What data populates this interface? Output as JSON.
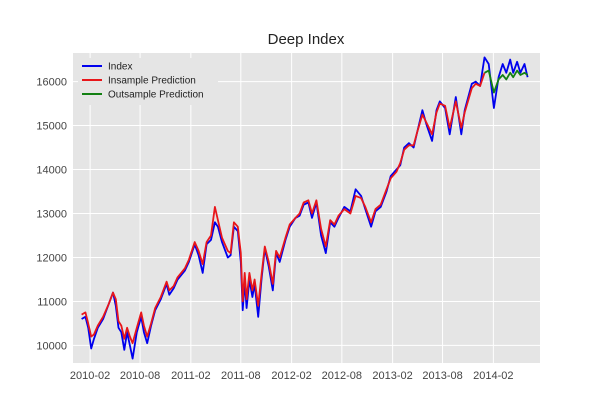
{
  "chart_data": {
    "type": "line",
    "title": "Deep Index",
    "xlabel": "",
    "ylabel": "",
    "grid": true,
    "legend_position": "top-left",
    "x_tick_labels": [
      "2010-02",
      "2010-08",
      "2011-02",
      "2011-08",
      "2012-02",
      "2012-08",
      "2013-02",
      "2013-08",
      "2014-02"
    ],
    "y_ticks": [
      10000,
      11000,
      12000,
      13000,
      14000,
      15000,
      16000
    ],
    "xlim": [
      "2009-12-01",
      "2014-07-20"
    ],
    "ylim": [
      9600,
      16650
    ],
    "colors": {
      "background": "#e5e5e5",
      "grid": "#ffffff",
      "index": "#0000ee",
      "insample": "#e8161a",
      "outsample": "#128012"
    },
    "series": [
      {
        "name": "Index",
        "color": "#0000ee",
        "points": [
          [
            "2010-01-01",
            10600
          ],
          [
            "2010-01-15",
            10650
          ],
          [
            "2010-01-25",
            10400
          ],
          [
            "2010-02-05",
            9930
          ],
          [
            "2010-02-15",
            10150
          ],
          [
            "2010-03-01",
            10400
          ],
          [
            "2010-03-20",
            10600
          ],
          [
            "2010-04-10",
            10950
          ],
          [
            "2010-04-25",
            11200
          ],
          [
            "2010-05-05",
            10900
          ],
          [
            "2010-05-15",
            10400
          ],
          [
            "2010-05-25",
            10300
          ],
          [
            "2010-06-05",
            9900
          ],
          [
            "2010-06-15",
            10300
          ],
          [
            "2010-06-25",
            10000
          ],
          [
            "2010-07-05",
            9700
          ],
          [
            "2010-07-20",
            10300
          ],
          [
            "2010-08-05",
            10650
          ],
          [
            "2010-08-15",
            10300
          ],
          [
            "2010-08-27",
            10050
          ],
          [
            "2010-09-10",
            10450
          ],
          [
            "2010-09-25",
            10800
          ],
          [
            "2010-10-15",
            11050
          ],
          [
            "2010-11-05",
            11400
          ],
          [
            "2010-11-15",
            11150
          ],
          [
            "2010-12-01",
            11300
          ],
          [
            "2010-12-15",
            11500
          ],
          [
            "2011-01-10",
            11700
          ],
          [
            "2011-01-25",
            11900
          ],
          [
            "2011-02-15",
            12300
          ],
          [
            "2011-03-01",
            12050
          ],
          [
            "2011-03-16",
            11650
          ],
          [
            "2011-03-30",
            12300
          ],
          [
            "2011-04-15",
            12400
          ],
          [
            "2011-04-29",
            12800
          ],
          [
            "2011-05-10",
            12700
          ],
          [
            "2011-05-25",
            12350
          ],
          [
            "2011-06-15",
            12000
          ],
          [
            "2011-06-25",
            12050
          ],
          [
            "2011-07-07",
            12700
          ],
          [
            "2011-07-21",
            12600
          ],
          [
            "2011-08-01",
            11900
          ],
          [
            "2011-08-08",
            10800
          ],
          [
            "2011-08-15",
            11450
          ],
          [
            "2011-08-22",
            10850
          ],
          [
            "2011-09-01",
            11500
          ],
          [
            "2011-09-12",
            11100
          ],
          [
            "2011-09-20",
            11400
          ],
          [
            "2011-10-03",
            10650
          ],
          [
            "2011-10-15",
            11500
          ],
          [
            "2011-10-27",
            12200
          ],
          [
            "2011-11-10",
            11800
          ],
          [
            "2011-11-25",
            11250
          ],
          [
            "2011-12-07",
            12100
          ],
          [
            "2011-12-20",
            11900
          ],
          [
            "2012-01-10",
            12400
          ],
          [
            "2012-01-25",
            12700
          ],
          [
            "2012-02-15",
            12900
          ],
          [
            "2012-03-01",
            12950
          ],
          [
            "2012-03-16",
            13200
          ],
          [
            "2012-04-02",
            13250
          ],
          [
            "2012-04-15",
            12900
          ],
          [
            "2012-05-01",
            13250
          ],
          [
            "2012-05-18",
            12500
          ],
          [
            "2012-06-04",
            12100
          ],
          [
            "2012-06-20",
            12800
          ],
          [
            "2012-07-05",
            12700
          ],
          [
            "2012-07-20",
            12900
          ],
          [
            "2012-08-10",
            13150
          ],
          [
            "2012-09-01",
            13050
          ],
          [
            "2012-09-20",
            13550
          ],
          [
            "2012-10-10",
            13400
          ],
          [
            "2012-10-25",
            13100
          ],
          [
            "2012-11-15",
            12700
          ],
          [
            "2012-12-01",
            13050
          ],
          [
            "2012-12-20",
            13150
          ],
          [
            "2013-01-10",
            13500
          ],
          [
            "2013-01-25",
            13850
          ],
          [
            "2013-02-15",
            14000
          ],
          [
            "2013-03-01",
            14100
          ],
          [
            "2013-03-15",
            14500
          ],
          [
            "2013-04-01",
            14600
          ],
          [
            "2013-04-18",
            14500
          ],
          [
            "2013-05-01",
            14850
          ],
          [
            "2013-05-20",
            15350
          ],
          [
            "2013-06-05",
            15000
          ],
          [
            "2013-06-24",
            14650
          ],
          [
            "2013-07-10",
            15350
          ],
          [
            "2013-07-22",
            15550
          ],
          [
            "2013-08-10",
            15400
          ],
          [
            "2013-08-27",
            14800
          ],
          [
            "2013-09-18",
            15650
          ],
          [
            "2013-10-08",
            14800
          ],
          [
            "2013-10-20",
            15350
          ],
          [
            "2013-11-15",
            15950
          ],
          [
            "2013-11-29",
            16000
          ],
          [
            "2013-12-15",
            15900
          ],
          [
            "2013-12-31",
            16550
          ],
          [
            "2014-01-15",
            16400
          ],
          [
            "2014-02-03",
            15400
          ],
          [
            "2014-02-20",
            16100
          ],
          [
            "2014-03-07",
            16400
          ],
          [
            "2014-03-20",
            16200
          ],
          [
            "2014-04-03",
            16500
          ],
          [
            "2014-04-14",
            16200
          ],
          [
            "2014-04-28",
            16450
          ],
          [
            "2014-05-10",
            16200
          ],
          [
            "2014-05-25",
            16400
          ],
          [
            "2014-06-05",
            16100
          ]
        ]
      },
      {
        "name": "Insample Prediction",
        "color": "#e8161a",
        "points": [
          [
            "2010-01-01",
            10700
          ],
          [
            "2010-01-15",
            10750
          ],
          [
            "2010-01-25",
            10500
          ],
          [
            "2010-02-05",
            10200
          ],
          [
            "2010-02-15",
            10250
          ],
          [
            "2010-03-01",
            10450
          ],
          [
            "2010-03-20",
            10650
          ],
          [
            "2010-04-10",
            10950
          ],
          [
            "2010-04-25",
            11200
          ],
          [
            "2010-05-05",
            11050
          ],
          [
            "2010-05-15",
            10550
          ],
          [
            "2010-05-25",
            10450
          ],
          [
            "2010-06-05",
            10150
          ],
          [
            "2010-06-15",
            10400
          ],
          [
            "2010-06-25",
            10200
          ],
          [
            "2010-07-05",
            10050
          ],
          [
            "2010-07-20",
            10400
          ],
          [
            "2010-08-05",
            10750
          ],
          [
            "2010-08-15",
            10450
          ],
          [
            "2010-08-27",
            10200
          ],
          [
            "2010-09-10",
            10500
          ],
          [
            "2010-09-25",
            10850
          ],
          [
            "2010-10-15",
            11100
          ],
          [
            "2010-11-05",
            11450
          ],
          [
            "2010-11-15",
            11250
          ],
          [
            "2010-12-01",
            11350
          ],
          [
            "2010-12-15",
            11550
          ],
          [
            "2011-01-10",
            11750
          ],
          [
            "2011-01-25",
            11950
          ],
          [
            "2011-02-15",
            12350
          ],
          [
            "2011-03-01",
            12150
          ],
          [
            "2011-03-16",
            11850
          ],
          [
            "2011-03-30",
            12350
          ],
          [
            "2011-04-15",
            12500
          ],
          [
            "2011-04-29",
            13150
          ],
          [
            "2011-05-10",
            12850
          ],
          [
            "2011-05-25",
            12450
          ],
          [
            "2011-06-15",
            12150
          ],
          [
            "2011-06-25",
            12100
          ],
          [
            "2011-07-07",
            12800
          ],
          [
            "2011-07-21",
            12700
          ],
          [
            "2011-08-01",
            12100
          ],
          [
            "2011-08-08",
            11000
          ],
          [
            "2011-08-15",
            11650
          ],
          [
            "2011-08-22",
            11050
          ],
          [
            "2011-09-01",
            11650
          ],
          [
            "2011-09-12",
            11250
          ],
          [
            "2011-09-20",
            11500
          ],
          [
            "2011-10-03",
            10900
          ],
          [
            "2011-10-15",
            11600
          ],
          [
            "2011-10-27",
            12250
          ],
          [
            "2011-11-10",
            11900
          ],
          [
            "2011-11-25",
            11400
          ],
          [
            "2011-12-07",
            12150
          ],
          [
            "2011-12-20",
            12000
          ],
          [
            "2012-01-10",
            12450
          ],
          [
            "2012-01-25",
            12750
          ],
          [
            "2012-02-15",
            12900
          ],
          [
            "2012-03-01",
            13000
          ],
          [
            "2012-03-16",
            13250
          ],
          [
            "2012-04-02",
            13300
          ],
          [
            "2012-04-15",
            13000
          ],
          [
            "2012-05-01",
            13300
          ],
          [
            "2012-05-18",
            12650
          ],
          [
            "2012-06-04",
            12250
          ],
          [
            "2012-06-20",
            12850
          ],
          [
            "2012-07-05",
            12750
          ],
          [
            "2012-07-20",
            12950
          ],
          [
            "2012-08-10",
            13100
          ],
          [
            "2012-09-01",
            13000
          ],
          [
            "2012-09-20",
            13400
          ],
          [
            "2012-10-10",
            13350
          ],
          [
            "2012-10-25",
            13150
          ],
          [
            "2012-11-15",
            12800
          ],
          [
            "2012-12-01",
            13100
          ],
          [
            "2012-12-20",
            13200
          ],
          [
            "2013-01-10",
            13550
          ],
          [
            "2013-01-25",
            13800
          ],
          [
            "2013-02-15",
            13950
          ],
          [
            "2013-03-01",
            14150
          ],
          [
            "2013-03-15",
            14450
          ],
          [
            "2013-04-01",
            14550
          ],
          [
            "2013-04-18",
            14550
          ],
          [
            "2013-05-01",
            14850
          ],
          [
            "2013-05-20",
            15250
          ],
          [
            "2013-06-05",
            15050
          ],
          [
            "2013-06-24",
            14800
          ],
          [
            "2013-07-10",
            15300
          ],
          [
            "2013-07-22",
            15500
          ],
          [
            "2013-08-10",
            15450
          ],
          [
            "2013-08-27",
            14950
          ],
          [
            "2013-09-18",
            15550
          ],
          [
            "2013-10-08",
            14950
          ],
          [
            "2013-10-20",
            15300
          ],
          [
            "2013-11-15",
            15850
          ],
          [
            "2013-11-29",
            15950
          ],
          [
            "2013-12-15",
            15900
          ],
          [
            "2013-12-31",
            16200
          ]
        ]
      },
      {
        "name": "Outsample Prediction",
        "color": "#128012",
        "points": [
          [
            "2013-12-31",
            16200
          ],
          [
            "2014-01-15",
            16250
          ],
          [
            "2014-02-03",
            15750
          ],
          [
            "2014-02-20",
            16050
          ],
          [
            "2014-03-07",
            16150
          ],
          [
            "2014-03-20",
            16050
          ],
          [
            "2014-04-03",
            16200
          ],
          [
            "2014-04-14",
            16100
          ],
          [
            "2014-04-28",
            16250
          ],
          [
            "2014-05-10",
            16150
          ],
          [
            "2014-05-25",
            16200
          ],
          [
            "2014-06-05",
            16150
          ]
        ]
      }
    ]
  }
}
